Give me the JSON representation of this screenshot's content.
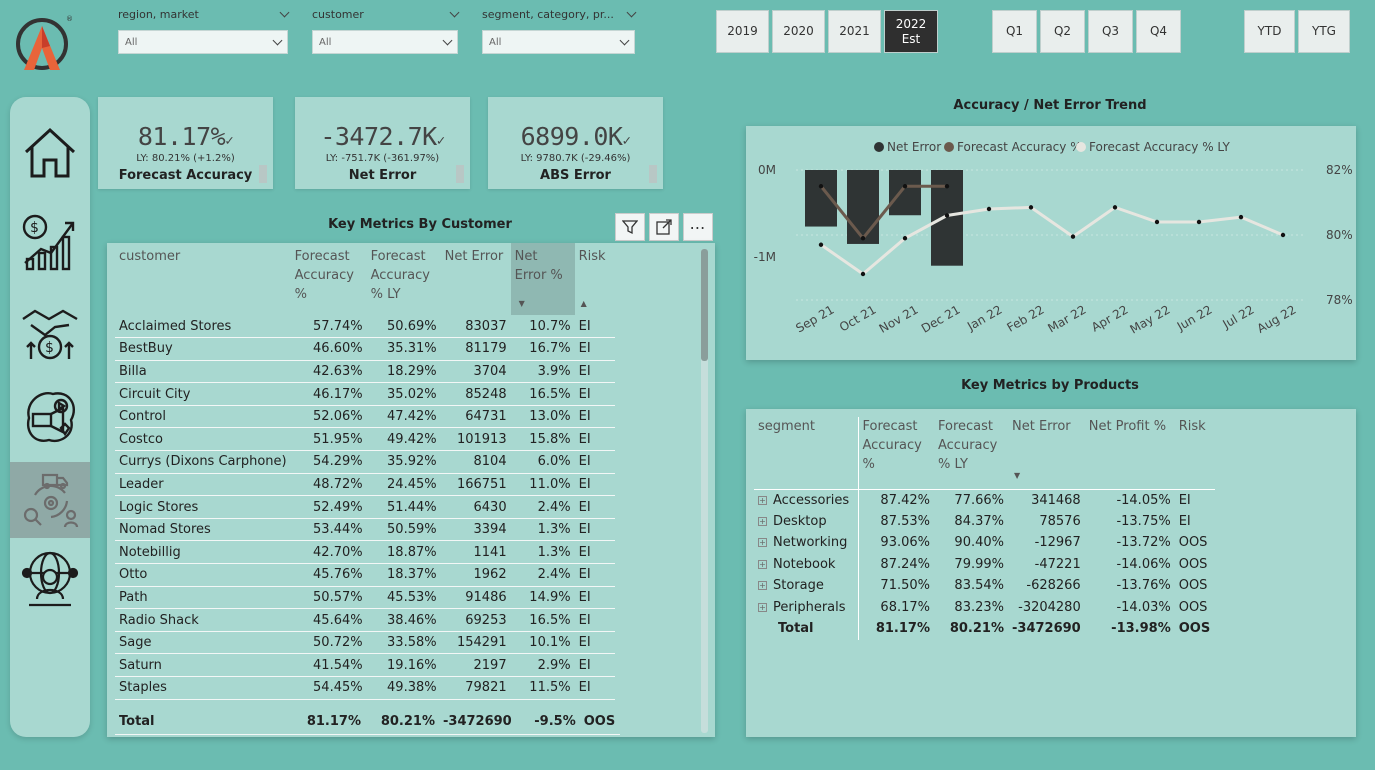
{
  "filters": [
    {
      "label": "region, market",
      "value": "All"
    },
    {
      "label": "customer",
      "value": "All"
    },
    {
      "label": "segment, category, pr...",
      "value": "All"
    }
  ],
  "years": [
    "2019",
    "2020",
    "2021",
    "2022\nEst"
  ],
  "quarters": [
    "Q1",
    "Q2",
    "Q3",
    "Q4"
  ],
  "periods": [
    "YTD",
    "YTG"
  ],
  "kpis": [
    {
      "value": "81.17%",
      "ly": "LY: 80.21% (+1.2%)",
      "name": "Forecast Accuracy"
    },
    {
      "value": "-3472.7K",
      "ly": "LY: -751.7K (-361.97%)",
      "name": "Net Error"
    },
    {
      "value": "6899.0K",
      "ly": "LY: 9780.7K (-29.46%)",
      "name": "ABS Error"
    }
  ],
  "nav_icons": [
    "home-icon",
    "finance-growth-icon",
    "sales-handshake-icon",
    "marketing-icon",
    "supply-chain-icon",
    "executive-globe-icon"
  ],
  "customer_table": {
    "title": "Key Metrics By Customer",
    "headers": [
      "customer",
      "Forecast Accuracy %",
      "Forecast Accuracy % LY",
      "Net Error",
      "Net Error %",
      "Risk"
    ],
    "rows": [
      [
        "Acclaimed Stores",
        "57.74%",
        "50.69%",
        "83037",
        "10.7%",
        "EI"
      ],
      [
        "BestBuy",
        "46.60%",
        "35.31%",
        "81179",
        "16.7%",
        "EI"
      ],
      [
        "Billa",
        "42.63%",
        "18.29%",
        "3704",
        "3.9%",
        "EI"
      ],
      [
        "Circuit City",
        "46.17%",
        "35.02%",
        "85248",
        "16.5%",
        "EI"
      ],
      [
        "Control",
        "52.06%",
        "47.42%",
        "64731",
        "13.0%",
        "EI"
      ],
      [
        "Costco",
        "51.95%",
        "49.42%",
        "101913",
        "15.8%",
        "EI"
      ],
      [
        "Currys (Dixons Carphone)",
        "54.29%",
        "35.92%",
        "8104",
        "6.0%",
        "EI"
      ],
      [
        "Leader",
        "48.72%",
        "24.45%",
        "166751",
        "11.0%",
        "EI"
      ],
      [
        "Logic Stores",
        "52.49%",
        "51.44%",
        "6430",
        "2.4%",
        "EI"
      ],
      [
        "Nomad Stores",
        "53.44%",
        "50.59%",
        "3394",
        "1.3%",
        "EI"
      ],
      [
        "Notebillig",
        "42.70%",
        "18.87%",
        "1141",
        "1.3%",
        "EI"
      ],
      [
        "Otto",
        "45.76%",
        "18.37%",
        "1962",
        "2.4%",
        "EI"
      ],
      [
        "Path",
        "50.57%",
        "45.53%",
        "91486",
        "14.9%",
        "EI"
      ],
      [
        "Radio Shack",
        "45.64%",
        "38.46%",
        "69253",
        "16.5%",
        "EI"
      ],
      [
        "Sage",
        "50.72%",
        "33.58%",
        "154291",
        "10.1%",
        "EI"
      ],
      [
        "Saturn",
        "41.54%",
        "19.16%",
        "2197",
        "2.9%",
        "EI"
      ],
      [
        "Staples",
        "54.45%",
        "49.38%",
        "79821",
        "11.5%",
        "EI"
      ]
    ],
    "total": [
      "Total",
      "81.17%",
      "80.21%",
      "-3472690",
      "-9.5%",
      "OOS"
    ]
  },
  "trend": {
    "title": "Accuracy / Net Error Trend",
    "legend": [
      "Net Error",
      "Forecast Accuracy %",
      "Forecast Accuracy % LY"
    ],
    "y_left_ticks": [
      "0M",
      "-1M"
    ],
    "y_right_ticks": [
      "82%",
      "80%",
      "78%"
    ]
  },
  "chart_data": {
    "type": "bar",
    "title": "Accuracy / Net Error Trend",
    "categories": [
      "Sep 21",
      "Oct 21",
      "Nov 21",
      "Dec 21",
      "Jan 22",
      "Feb 22",
      "Mar 22",
      "Apr 22",
      "May 22",
      "Jun 22",
      "Jul 22",
      "Aug 22"
    ],
    "y_left_range": [
      -1.2,
      0.1
    ],
    "y_right_range": [
      77.8,
      82.4
    ],
    "series": [
      {
        "name": "Net Error",
        "type": "bar",
        "axis": "left",
        "values": [
          -0.65,
          -0.85,
          -0.52,
          -1.1,
          null,
          null,
          null,
          null,
          null,
          null,
          null,
          null
        ],
        "color": "#2f3434"
      },
      {
        "name": "Forecast Accuracy %",
        "type": "line",
        "axis": "right",
        "values": [
          81.5,
          79.9,
          81.5,
          81.5,
          null,
          null,
          null,
          null,
          null,
          null,
          null,
          null
        ],
        "color": "#6b5a4d"
      },
      {
        "name": "Forecast Accuracy % LY",
        "type": "line",
        "axis": "right",
        "values": [
          79.7,
          78.8,
          79.9,
          80.6,
          80.8,
          80.85,
          79.95,
          80.85,
          80.4,
          80.4,
          80.55,
          80.0
        ],
        "color": "#e6e6e0"
      }
    ]
  },
  "product_table": {
    "title": "Key Metrics by Products",
    "headers": [
      "segment",
      "Forecast Accuracy %",
      "Forecast Accuracy % LY",
      "Net Error",
      "Net Profit %",
      "Risk"
    ],
    "rows": [
      [
        "Accessories",
        "87.42%",
        "77.66%",
        "341468",
        "-14.05%",
        "EI"
      ],
      [
        "Desktop",
        "87.53%",
        "84.37%",
        "78576",
        "-13.75%",
        "EI"
      ],
      [
        "Networking",
        "93.06%",
        "90.40%",
        "-12967",
        "-13.72%",
        "OOS"
      ],
      [
        "Notebook",
        "87.24%",
        "79.99%",
        "-47221",
        "-14.06%",
        "OOS"
      ],
      [
        "Storage",
        "71.50%",
        "83.54%",
        "-628266",
        "-13.76%",
        "OOS"
      ],
      [
        "Peripherals",
        "68.17%",
        "83.23%",
        "-3204280",
        "-14.03%",
        "OOS"
      ]
    ],
    "total": [
      "Total",
      "81.17%",
      "80.21%",
      "-3472690",
      "-13.98%",
      "OOS"
    ]
  }
}
